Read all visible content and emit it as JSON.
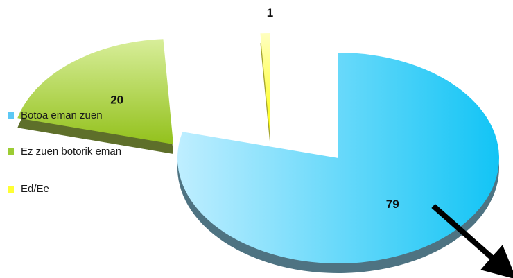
{
  "chart_data": {
    "type": "pie",
    "categories": [
      "Botoa eman zuen",
      "Ez zuen botorik eman",
      "Ed/Ee"
    ],
    "values": [
      79,
      20,
      1
    ],
    "colors": [
      "#5cc8f5",
      "#9ccc33",
      "#ffff33"
    ],
    "legend_position": "left",
    "exploded": true,
    "three_d": true
  }
}
